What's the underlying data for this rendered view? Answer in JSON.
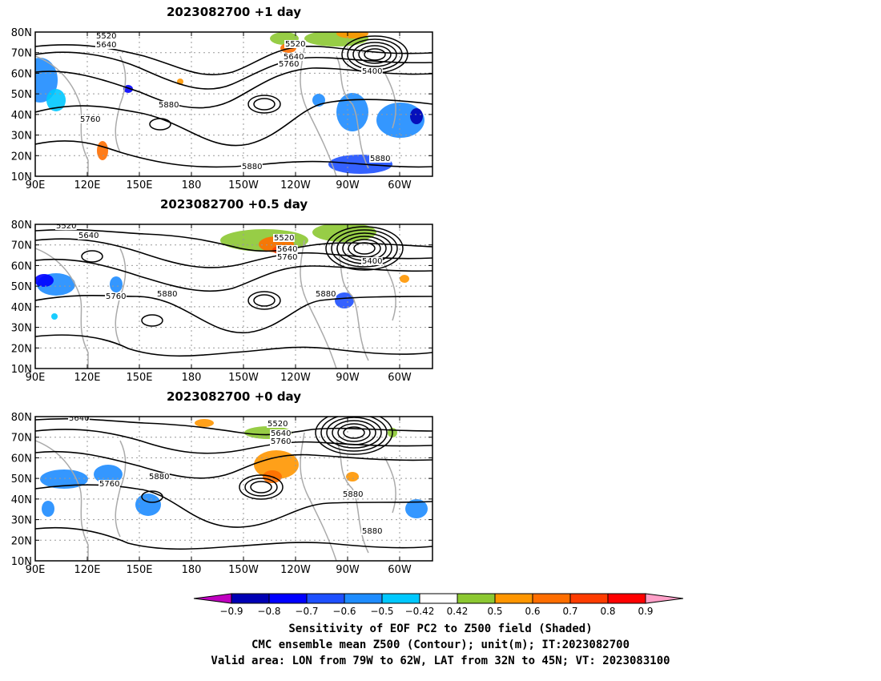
{
  "panels": [
    {
      "title": "2023082700  +1 day",
      "contour_labels": [
        "5520",
        "5640",
        "5520",
        "5640",
        "5760",
        "5400",
        "5880",
        "5760",
        "5880",
        "5880"
      ]
    },
    {
      "title": "2023082700  +0.5 day",
      "contour_labels": [
        "5520",
        "5640",
        "5520",
        "5640",
        "5760",
        "5400",
        "5760",
        "5880",
        "5880"
      ]
    },
    {
      "title": "2023082700  +0 day",
      "contour_labels": [
        "5640",
        "5520",
        "5640",
        "5760",
        "5760",
        "5880",
        "5880",
        "5880"
      ]
    }
  ],
  "axes": {
    "lat_labels": [
      "80N",
      "70N",
      "60N",
      "50N",
      "40N",
      "30N",
      "20N",
      "10N"
    ],
    "lon_labels": [
      "90E",
      "120E",
      "150E",
      "180",
      "150W",
      "120W",
      "90W",
      "60W"
    ]
  },
  "colorbar": {
    "tick_labels": [
      "−0.9",
      "−0.8",
      "−0.7",
      "−0.6",
      "−0.5",
      "−0.42",
      "0.42",
      "0.5",
      "0.6",
      "0.7",
      "0.8",
      "0.9"
    ],
    "colors": [
      "#c000c0",
      "#0000b4",
      "#0000ff",
      "#1e50ff",
      "#1e8cff",
      "#00c8ff",
      "#ffffff",
      "#8cc832",
      "#ff9600",
      "#ff6e00",
      "#ff3c00",
      "#ff0000",
      "#ffa0c8"
    ]
  },
  "caption": {
    "line1": "Sensitivity of EOF PC2 to Z500 field (Shaded)",
    "line2": "CMC ensemble mean Z500 (Contour); unit(m); IT:2023082700",
    "line3": "Valid area: LON from 79W to 62W, LAT from 32N to 45N; VT: 2023083100"
  }
}
